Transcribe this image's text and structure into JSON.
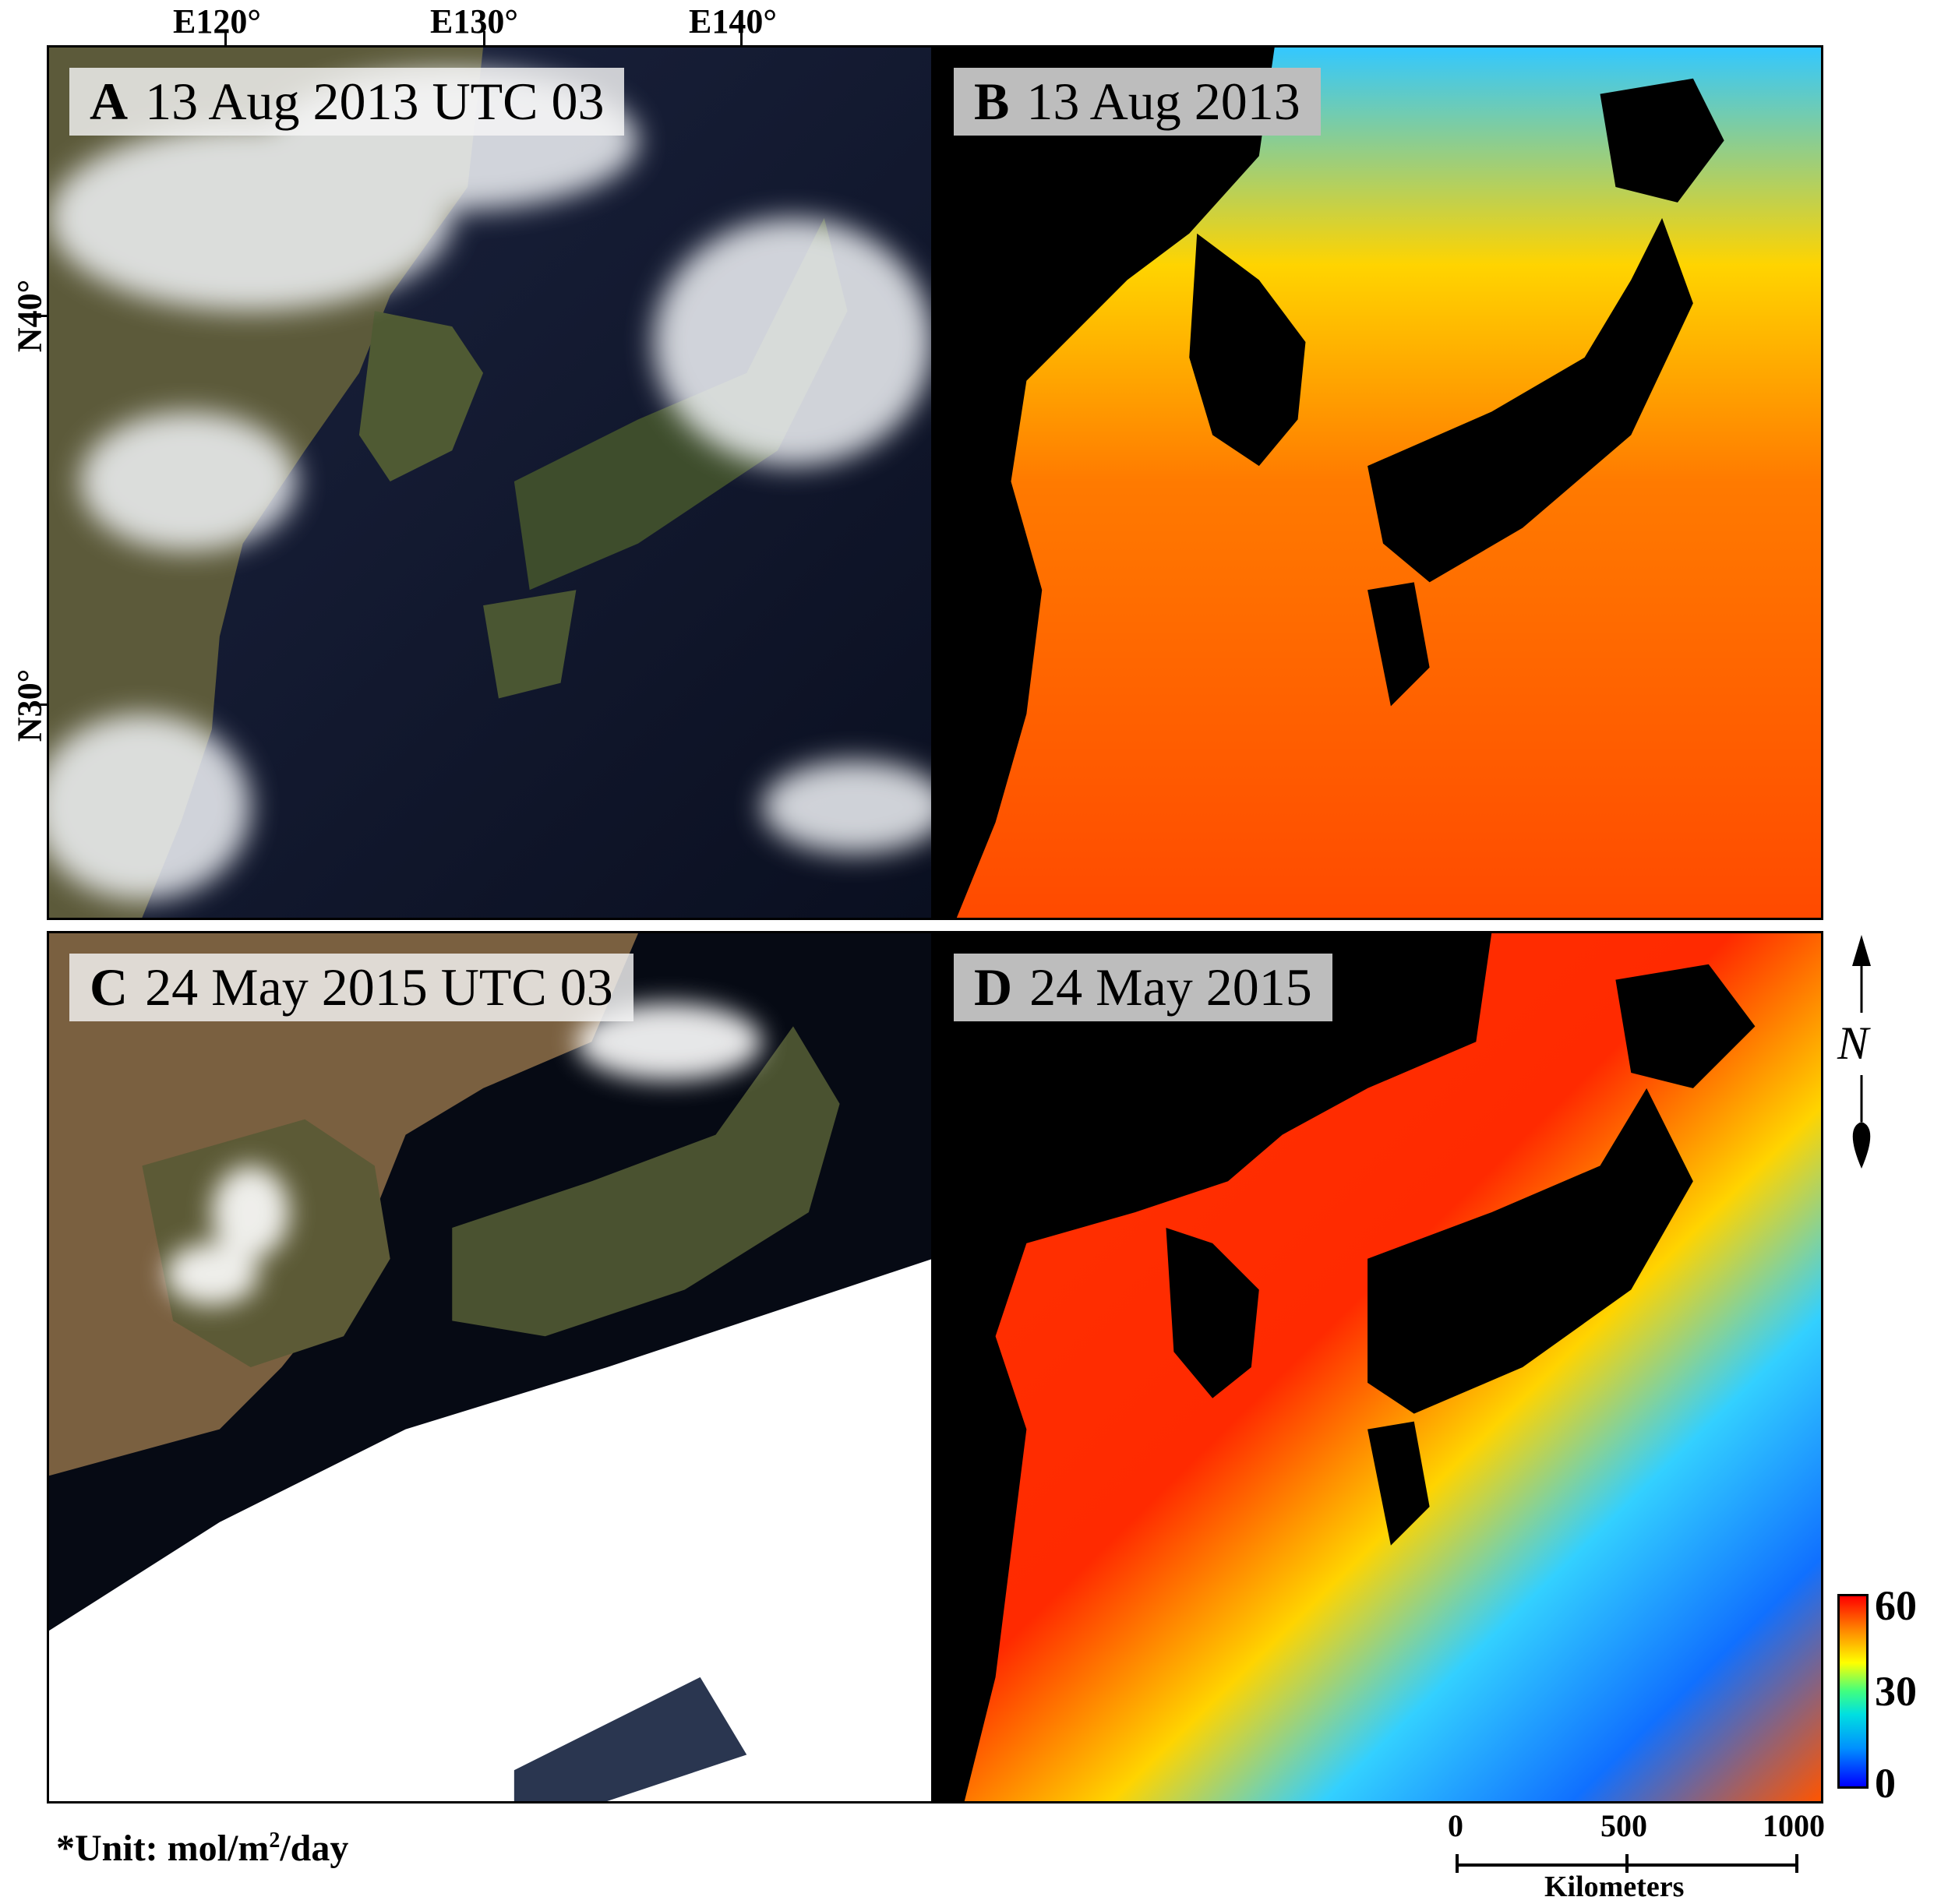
{
  "longitude_labels": [
    "E120°",
    "E130°",
    "E140°"
  ],
  "latitude_labels": [
    "N40°",
    "N30°"
  ],
  "panels": [
    {
      "letter": "A",
      "date": "13 Aug 2013 UTC 03",
      "kind": "true-color satellite image"
    },
    {
      "letter": "B",
      "date": "13 Aug 2013",
      "kind": "photosynthetically available radiation map"
    },
    {
      "letter": "C",
      "date": "24 May 2015 UTC 03",
      "kind": "true-color satellite image"
    },
    {
      "letter": "D",
      "date": "24 May 2015",
      "kind": "photosynthetically available radiation map"
    }
  ],
  "colorbar": {
    "max": "60",
    "mid": "30",
    "min": "0",
    "colors": [
      "#0000ff",
      "#0090ff",
      "#00e0e0",
      "#40ff80",
      "#ffff00",
      "#ff8800",
      "#ff0000"
    ]
  },
  "unit_prefix": "*Unit: mol/m",
  "unit_sup": "2",
  "unit_suffix": "/day",
  "north_arrow": {
    "symbol": "N"
  },
  "scale_bar": {
    "ticks": [
      "0",
      "500",
      "1000"
    ],
    "title": "Kilometers"
  },
  "colors": {
    "land_mask": "#000000",
    "ocean_high": "#ff3300",
    "ocean_low": "#1e90ff"
  }
}
